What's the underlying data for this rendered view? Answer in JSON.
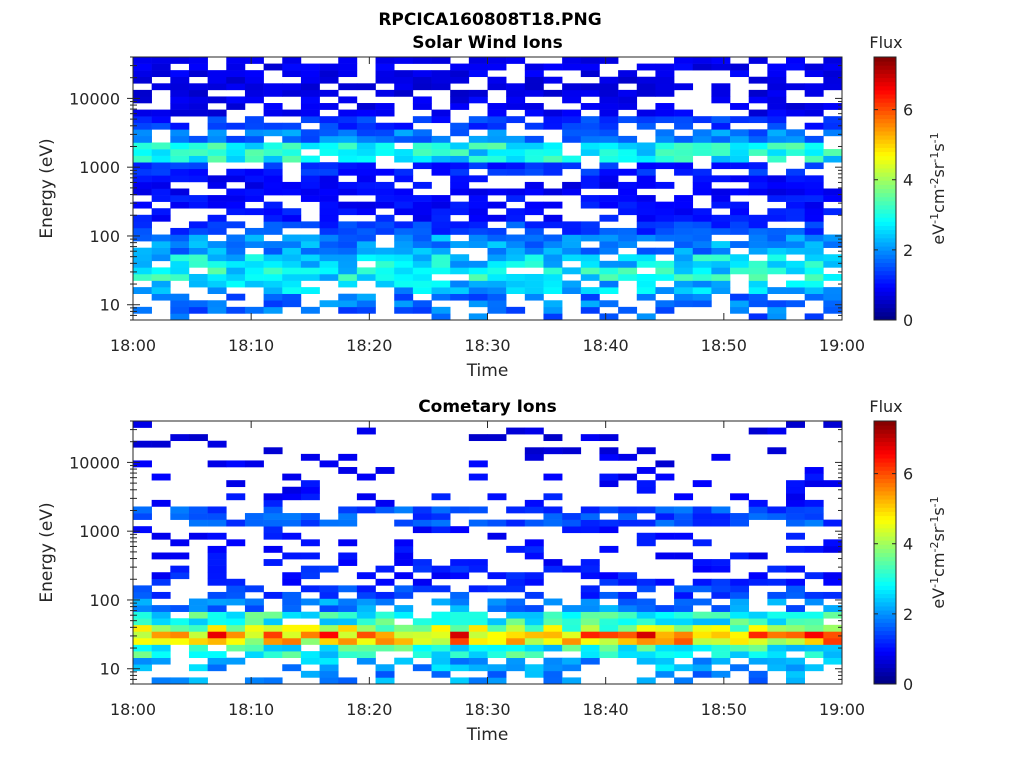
{
  "figure_title": "RPCICA160808T18.PNG",
  "chart_data": [
    {
      "type": "heatmap",
      "title": "Solar Wind Ions",
      "xlabel": "Time",
      "ylabel": "Energy (eV)",
      "x_ticks": [
        "18:00",
        "18:10",
        "18:20",
        "18:30",
        "18:40",
        "18:50",
        "19:00"
      ],
      "y_ticks": [
        "10",
        "100",
        "1000",
        "10000"
      ],
      "y_scale": "log",
      "ylim": [
        6,
        40000
      ],
      "xlim": [
        "18:00",
        "19:00"
      ],
      "colorbar": {
        "label": "Flux",
        "unit": "eV-1cm-2sr-1s-1",
        "ticks": [
          "0",
          "2",
          "4",
          "6"
        ],
        "range": [
          0,
          7.5
        ],
        "colormap": "jet"
      },
      "time_step_seconds": 96,
      "energy_profile": [
        {
          "energy_eV": 30000,
          "flux": 0.8,
          "fill": 0.75
        },
        {
          "energy_eV": 15000,
          "flux": 0.7,
          "fill": 0.65
        },
        {
          "energy_eV": 8000,
          "flux": 0.8,
          "fill": 0.6
        },
        {
          "energy_eV": 4000,
          "flux": 1.3,
          "fill": 0.7
        },
        {
          "energy_eV": 2800,
          "flux": 1.8,
          "fill": 0.75
        },
        {
          "energy_eV": 1700,
          "flux": 2.8,
          "fill": 0.9
        },
        {
          "energy_eV": 1000,
          "flux": 1.2,
          "fill": 0.75
        },
        {
          "energy_eV": 500,
          "flux": 0.9,
          "fill": 0.7
        },
        {
          "energy_eV": 250,
          "flux": 1.0,
          "fill": 0.7
        },
        {
          "energy_eV": 130,
          "flux": 1.4,
          "fill": 0.75
        },
        {
          "energy_eV": 70,
          "flux": 2.0,
          "fill": 0.85
        },
        {
          "energy_eV": 45,
          "flux": 2.6,
          "fill": 0.9
        },
        {
          "energy_eV": 30,
          "flux": 2.8,
          "fill": 0.85
        },
        {
          "energy_eV": 20,
          "flux": 2.4,
          "fill": 0.7
        },
        {
          "energy_eV": 12,
          "flux": 1.8,
          "fill": 0.55
        },
        {
          "energy_eV": 7,
          "flux": 1.7,
          "fill": 0.4
        }
      ]
    },
    {
      "type": "heatmap",
      "title": "Cometary Ions",
      "xlabel": "Time",
      "ylabel": "Energy (eV)",
      "x_ticks": [
        "18:00",
        "18:10",
        "18:20",
        "18:30",
        "18:40",
        "18:50",
        "19:00"
      ],
      "y_ticks": [
        "10",
        "100",
        "1000",
        "10000"
      ],
      "y_scale": "log",
      "ylim": [
        6,
        40000
      ],
      "xlim": [
        "18:00",
        "19:00"
      ],
      "colorbar": {
        "label": "Flux",
        "unit": "eV-1cm-2sr-1s-1",
        "ticks": [
          "0",
          "2",
          "4",
          "6"
        ],
        "range": [
          0,
          7.5
        ],
        "colormap": "jet"
      },
      "time_step_seconds": 96,
      "energy_profile": [
        {
          "energy_eV": 20000,
          "flux": 0.7,
          "fill": 0.12
        },
        {
          "energy_eV": 10000,
          "flux": 0.8,
          "fill": 0.2
        },
        {
          "energy_eV": 5000,
          "flux": 0.9,
          "fill": 0.15
        },
        {
          "energy_eV": 2500,
          "flux": 1.0,
          "fill": 0.25
        },
        {
          "energy_eV": 1700,
          "flux": 1.5,
          "fill": 0.75
        },
        {
          "energy_eV": 800,
          "flux": 1.0,
          "fill": 0.3
        },
        {
          "energy_eV": 400,
          "flux": 1.0,
          "fill": 0.3
        },
        {
          "energy_eV": 200,
          "flux": 1.1,
          "fill": 0.4
        },
        {
          "energy_eV": 120,
          "flux": 1.4,
          "fill": 0.55
        },
        {
          "energy_eV": 75,
          "flux": 1.9,
          "fill": 0.75
        },
        {
          "energy_eV": 50,
          "flux": 3.0,
          "fill": 0.95
        },
        {
          "energy_eV": 38,
          "flux": 4.0,
          "fill": 1.0
        },
        {
          "energy_eV": 30,
          "flux": 5.5,
          "fill": 1.0
        },
        {
          "energy_eV": 24,
          "flux": 5.0,
          "fill": 1.0
        },
        {
          "energy_eV": 18,
          "flux": 3.0,
          "fill": 0.9
        },
        {
          "energy_eV": 11,
          "flux": 2.2,
          "fill": 0.5
        },
        {
          "energy_eV": 7,
          "flux": 2.0,
          "fill": 0.35
        }
      ]
    }
  ]
}
